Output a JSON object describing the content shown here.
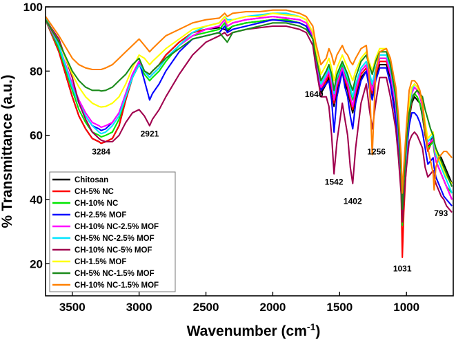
{
  "chart_data": {
    "type": "line",
    "title": "",
    "xlabel": "Wavenumber (cm",
    "xlabel_sup": "-1",
    "xlabel_close": ")",
    "ylabel": "% Transmittance (a.u.)",
    "xlim": [
      3700,
      650
    ],
    "ylim": [
      10,
      100
    ],
    "xticks": [
      3500,
      3000,
      2500,
      2000,
      1500,
      1000
    ],
    "yticks": [
      20,
      40,
      60,
      80,
      100
    ],
    "legend_position": "bottom-left",
    "x": [
      3700,
      3600,
      3500,
      3450,
      3400,
      3350,
      3300,
      3284,
      3250,
      3200,
      3150,
      3100,
      3050,
      3000,
      2960,
      2921,
      2900,
      2850,
      2800,
      2700,
      2600,
      2500,
      2400,
      2360,
      2340,
      2300,
      2200,
      2100,
      2000,
      1900,
      1800,
      1750,
      1700,
      1680,
      1640,
      1600,
      1580,
      1560,
      1542,
      1520,
      1480,
      1460,
      1440,
      1420,
      1402,
      1380,
      1340,
      1300,
      1280,
      1256,
      1230,
      1200,
      1150,
      1120,
      1080,
      1060,
      1040,
      1031,
      1020,
      1000,
      980,
      960,
      940,
      920,
      900,
      880,
      860,
      840,
      820,
      800,
      793,
      780,
      760,
      740,
      720,
      700,
      680,
      660
    ],
    "series": [
      {
        "name": "Chitosan",
        "color": "#000000",
        "values": [
          96,
          86,
          72,
          66,
          62,
          59,
          58,
          57.5,
          58,
          59,
          63,
          71,
          78,
          82,
          80,
          79,
          80,
          82,
          85,
          89,
          92,
          93,
          93.5,
          93,
          92.5,
          94,
          95,
          95.5,
          96,
          96,
          95,
          94,
          90,
          84,
          73,
          76,
          78,
          74,
          69,
          74,
          80,
          76,
          74,
          70,
          67,
          72,
          78,
          80,
          76,
          72,
          78,
          82,
          82,
          78,
          68,
          58,
          46,
          36,
          42,
          55,
          65,
          70,
          72,
          71,
          70,
          66,
          60,
          56,
          58,
          60,
          58,
          55,
          54,
          53,
          51,
          49,
          47,
          45
        ]
      },
      {
        "name": "CH-5% NC",
        "color": "#ff0000",
        "values": [
          96,
          86,
          72,
          66,
          62,
          59,
          58,
          57.5,
          58,
          59,
          63,
          71,
          78,
          82,
          80,
          79,
          80,
          82,
          85,
          89,
          92,
          93,
          94,
          96,
          94,
          95,
          96,
          96.5,
          97,
          96.5,
          96,
          95,
          91,
          85,
          74,
          77,
          79,
          75,
          70,
          75,
          81,
          77,
          75,
          71,
          68,
          73,
          79,
          81,
          77,
          73,
          79,
          83,
          83,
          79,
          69,
          58,
          44,
          22,
          36,
          52,
          65,
          71,
          73,
          72,
          70,
          67,
          60,
          55,
          57,
          59,
          56,
          52,
          50,
          48,
          46,
          44,
          42,
          40
        ]
      },
      {
        "name": "CH-10% NC",
        "color": "#00e600",
        "values": [
          96,
          87,
          74,
          68,
          64,
          61,
          60,
          59.5,
          60,
          61,
          65,
          72,
          78,
          82,
          79,
          77,
          78,
          80,
          83,
          88,
          91,
          92,
          93,
          95,
          93,
          94,
          95,
          95.5,
          96,
          96,
          95,
          94,
          90,
          85,
          76,
          79,
          81,
          77,
          72,
          77,
          82,
          79,
          77,
          74,
          71,
          75,
          80,
          82,
          79,
          75,
          80,
          84,
          84,
          80,
          70,
          60,
          46,
          32,
          40,
          54,
          66,
          72,
          73,
          72,
          70,
          67,
          61,
          56,
          57,
          58,
          55,
          52,
          50,
          48,
          46,
          44,
          43,
          42
        ]
      },
      {
        "name": "CH-2.5% MOF",
        "color": "#0000ff",
        "values": [
          96,
          88,
          75,
          70,
          66,
          63,
          62,
          61.5,
          62,
          64,
          67,
          73,
          79,
          83,
          77,
          71,
          73,
          76,
          80,
          86,
          90,
          91,
          92,
          94,
          92,
          93,
          94,
          95,
          96,
          95.5,
          95,
          94,
          90,
          84,
          74,
          76,
          77,
          71,
          61,
          72,
          80,
          75,
          72,
          66,
          62,
          70,
          77,
          80,
          75,
          71,
          77,
          81,
          81,
          76,
          65,
          56,
          45,
          35,
          42,
          54,
          63,
          67,
          67,
          66,
          64,
          61,
          56,
          51,
          52,
          53,
          50,
          47,
          45,
          43,
          41,
          40,
          39,
          38
        ]
      },
      {
        "name": "CH-10% NC-2.5% MOF",
        "color": "#ff00ff",
        "values": [
          96,
          88,
          76,
          71,
          67,
          64,
          63,
          62.5,
          63,
          64,
          67,
          73,
          79,
          83,
          80,
          78,
          79,
          81,
          84,
          88,
          91,
          93,
          94,
          96,
          94,
          95,
          96,
          96.5,
          97,
          96.5,
          96,
          95,
          91,
          85,
          75,
          78,
          80,
          76,
          71,
          76,
          81,
          78,
          76,
          72,
          69,
          74,
          80,
          82,
          78,
          74,
          80,
          84,
          84,
          79,
          69,
          60,
          47,
          36,
          42,
          55,
          67,
          73,
          75,
          74,
          72,
          69,
          62,
          57,
          58,
          59,
          56,
          52,
          50,
          48,
          46,
          44,
          42,
          40
        ]
      },
      {
        "name": "CH-5% NC-2.5% MOF",
        "color": "#00e5ff",
        "values": [
          97,
          88,
          75,
          70,
          66,
          63,
          61,
          60.5,
          61,
          63,
          66,
          72,
          78,
          82,
          80,
          78,
          79,
          81,
          84,
          88,
          92,
          94,
          95,
          97,
          96,
          96,
          97,
          97.5,
          98,
          98,
          97,
          96,
          92,
          86,
          76,
          79,
          81,
          78,
          73,
          78,
          83,
          80,
          78,
          75,
          72,
          76,
          81,
          83,
          80,
          76,
          81,
          85,
          85,
          81,
          71,
          61,
          48,
          34,
          42,
          56,
          68,
          74,
          76,
          75,
          73,
          70,
          63,
          58,
          59,
          60,
          57,
          54,
          52,
          50,
          48,
          46,
          44,
          42
        ]
      },
      {
        "name": "CH-10% NC-5% MOF",
        "color": "#a0004e",
        "values": [
          96,
          90,
          78,
          70,
          65,
          61,
          59,
          58.5,
          58,
          58,
          60,
          64,
          67,
          68,
          66,
          63,
          65,
          68,
          72,
          79,
          85,
          89,
          91,
          92,
          91,
          92,
          93,
          93.5,
          94,
          94,
          93,
          92,
          88,
          82,
          72,
          72,
          69,
          60,
          48,
          58,
          70,
          65,
          60,
          50,
          45,
          56,
          70,
          76,
          69,
          62,
          70,
          78,
          78,
          72,
          62,
          53,
          42,
          33,
          40,
          50,
          58,
          60,
          61,
          60,
          58,
          56,
          50,
          47,
          48,
          49,
          47,
          45,
          43,
          41,
          40,
          38,
          37,
          36
        ]
      },
      {
        "name": "CH-1.5% MOF",
        "color": "#ffff00",
        "values": [
          96,
          89,
          79,
          75,
          72,
          70,
          69,
          68.8,
          69,
          70,
          72,
          76,
          81,
          85,
          84,
          82,
          83,
          85,
          87,
          90,
          93,
          94,
          95,
          97,
          95,
          96,
          97,
          97,
          98,
          97.5,
          97,
          96,
          92,
          87,
          79,
          82,
          84,
          81,
          77,
          81,
          85,
          83,
          81,
          79,
          77,
          80,
          84,
          86,
          83,
          80,
          84,
          87,
          87,
          83,
          73,
          64,
          52,
          40,
          47,
          60,
          70,
          75,
          76,
          75,
          73,
          70,
          64,
          59,
          60,
          61,
          58,
          55,
          53,
          51,
          49,
          47,
          46,
          45
        ]
      },
      {
        "name": "CH-5% NC-1.5% MOF",
        "color": "#1a8a1a",
        "values": [
          96,
          89,
          80,
          77,
          75,
          74,
          74,
          73.8,
          74,
          75,
          77,
          79,
          82,
          84,
          80,
          79,
          80,
          82,
          84,
          87,
          90,
          91,
          92,
          90,
          89,
          92,
          93,
          94,
          95,
          95,
          94,
          93,
          90,
          85,
          77,
          80,
          82,
          79,
          74,
          79,
          83,
          81,
          79,
          76,
          74,
          78,
          83,
          85,
          82,
          79,
          83,
          86,
          86,
          82,
          72,
          62,
          49,
          37,
          45,
          58,
          67,
          71,
          73,
          74,
          73,
          72,
          68,
          65,
          62,
          60,
          58,
          56,
          54,
          52,
          50,
          48,
          46,
          44
        ]
      },
      {
        "name": "CH-10% NC-1.5% MOF",
        "color": "#ff8000",
        "values": [
          97,
          91,
          84,
          82,
          81,
          80.5,
          80.5,
          80.5,
          81,
          82,
          84,
          86,
          88,
          90,
          88,
          86,
          87,
          89,
          91,
          93,
          95,
          96,
          96.5,
          98,
          97,
          98,
          98.5,
          98.5,
          99,
          99,
          98,
          97,
          94,
          89,
          82,
          84,
          87,
          85,
          82,
          85,
          88,
          86,
          85,
          83,
          82,
          84,
          87,
          88,
          80,
          54,
          80,
          86,
          87,
          84,
          75,
          66,
          54,
          42,
          50,
          63,
          74,
          77,
          77,
          76,
          74,
          70,
          62,
          56,
          52,
          48,
          43,
          50,
          53,
          54,
          55,
          55,
          54,
          53
        ]
      }
    ],
    "annotations": [
      {
        "text": "3284",
        "x": 3284,
        "y": 57.5
      },
      {
        "text": "2921",
        "x": 2921,
        "y": 63
      },
      {
        "text": "1640",
        "x": 1640,
        "y": 70
      },
      {
        "text": "1542",
        "x": 1542,
        "y": 48
      },
      {
        "text": "1402",
        "x": 1402,
        "y": 45
      },
      {
        "text": "1256",
        "x": 1256,
        "y": 54
      },
      {
        "text": "1031",
        "x": 1031,
        "y": 21
      },
      {
        "text": "793",
        "x": 793,
        "y": 43
      }
    ]
  }
}
